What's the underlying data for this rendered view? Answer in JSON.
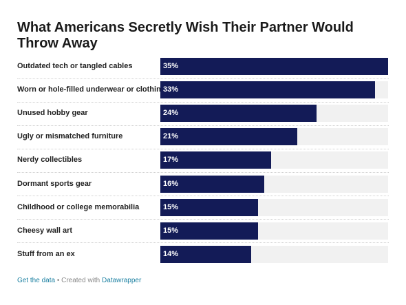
{
  "chart_data": {
    "type": "bar",
    "orientation": "horizontal",
    "title": "What Americans Secretly Wish Their Partner Would Throw Away",
    "categories": [
      "Outdated tech or tangled cables",
      "Worn or hole-filled underwear or clothing",
      "Unused hobby gear",
      "Ugly or mismatched furniture",
      "Nerdy collectibles",
      "Dormant sports gear",
      "Childhood or college memorabilia",
      "Cheesy wall art",
      "Stuff from an ex"
    ],
    "values": [
      35,
      33,
      24,
      21,
      17,
      16,
      15,
      15,
      14
    ],
    "value_labels": [
      "35%",
      "33%",
      "24%",
      "21%",
      "17%",
      "16%",
      "15%",
      "15%",
      "14%"
    ],
    "xlim": [
      0,
      35
    ],
    "colors": {
      "bar": "#131b57",
      "track": "#f1f1f1"
    }
  },
  "footer": {
    "data_link": "Get the data",
    "separator": " • Created with ",
    "tool_link": "Datawrapper"
  }
}
